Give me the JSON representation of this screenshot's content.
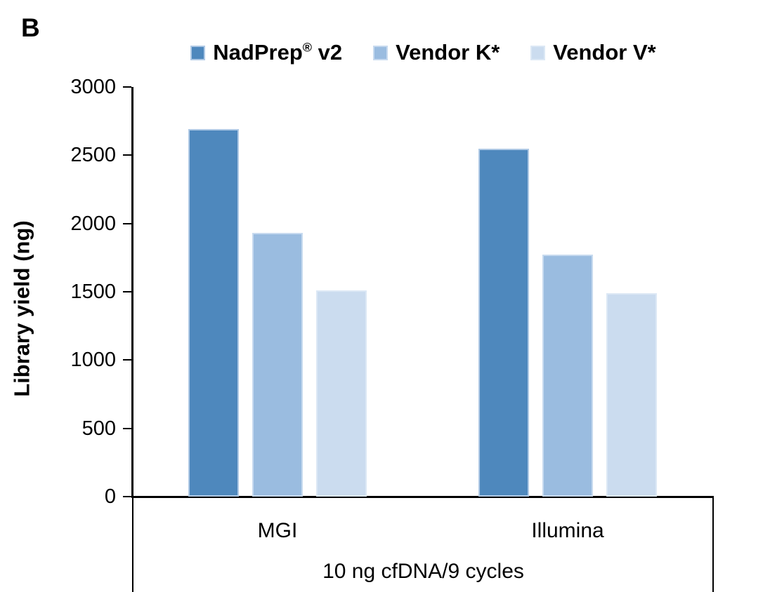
{
  "panel_label": "B",
  "chart_data": {
    "type": "bar",
    "panel_label": "B",
    "title": "",
    "ylabel": "Library yield (ng)",
    "xlabel": "",
    "ylim": [
      0,
      3000
    ],
    "yticks": [
      0,
      500,
      1000,
      1500,
      2000,
      2500,
      3000
    ],
    "categories": [
      "MGI",
      "Illumina"
    ],
    "group_label": "10 ng cfDNA/9 cycles",
    "legend_position": "top",
    "grid": false,
    "axis_color": "#000000",
    "text_color": "#000000",
    "series": [
      {
        "name": "NadPrep® v2",
        "color": "#4E88BD",
        "border_color": "#AFC9E5",
        "values": [
          2690,
          2550
        ]
      },
      {
        "name": "Vendor K*",
        "color": "#9ABCE0",
        "border_color": "#C7DAEF",
        "values": [
          1930,
          1770
        ]
      },
      {
        "name": "Vendor V*",
        "color": "#CBDCEF",
        "border_color": "#DCE8F5",
        "values": [
          1510,
          1490
        ]
      }
    ]
  }
}
